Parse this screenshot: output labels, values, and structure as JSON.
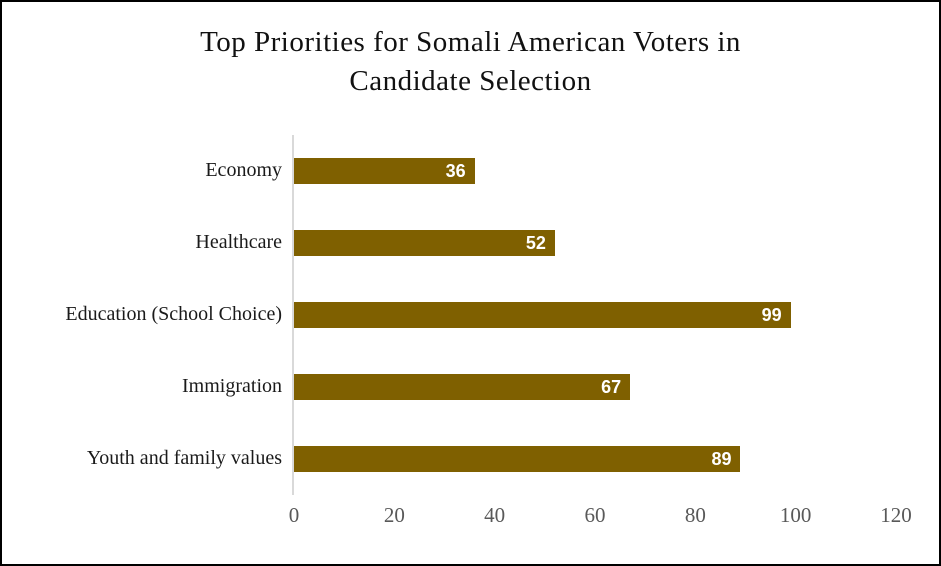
{
  "frame": {
    "border_color": "#000000",
    "background_color": "#ffffff"
  },
  "chart_data": {
    "type": "bar",
    "orientation": "horizontal",
    "title": "Top Priorities for Somali American Voters in Candidate Selection",
    "title_lines": [
      "Top Priorities for Somali American Voters in",
      "Candidate Selection"
    ],
    "categories": [
      "Economy",
      "Healthcare",
      "Education (School Choice)",
      "Immigration",
      "Youth and family values"
    ],
    "values": [
      36,
      52,
      99,
      67,
      89
    ],
    "data_labels": [
      "36",
      "52",
      "99",
      "67",
      "89"
    ],
    "xlabel": "",
    "ylabel": "",
    "xlim": [
      0,
      120
    ],
    "x_ticks": [
      0,
      20,
      40,
      60,
      80,
      100,
      120
    ],
    "grid": false,
    "legend": false,
    "bar_color": "#7F6000",
    "data_label_color": "#FFFFFF",
    "axis_line_color": "#D9D9D9",
    "tick_label_color": "#595959",
    "title_color": "#111111",
    "category_label_color": "#1A1A1A"
  }
}
